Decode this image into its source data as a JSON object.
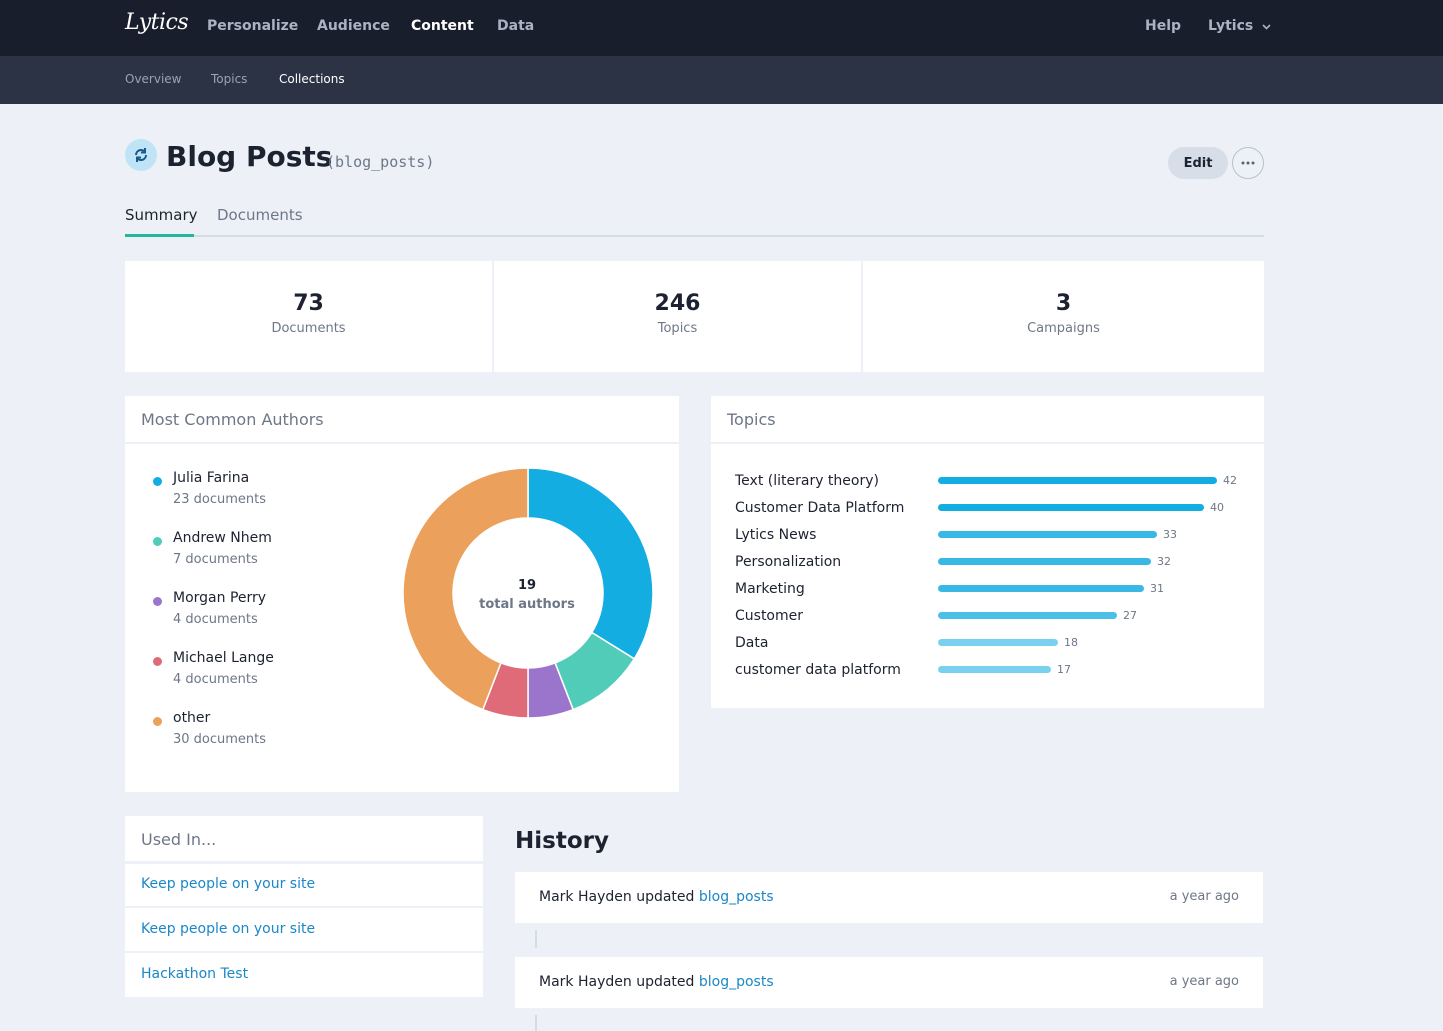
{
  "top_nav": {
    "logo": "Lytics",
    "items": [
      "Personalize",
      "Audience",
      "Content",
      "Data"
    ],
    "help": "Help",
    "account": "Lytics"
  },
  "sub_nav": [
    "Overview",
    "Topics",
    "Collections"
  ],
  "page": {
    "title": "Blog Posts",
    "slug": "(blog_posts)",
    "edit_label": "Edit"
  },
  "tabs": [
    "Summary",
    "Documents"
  ],
  "stats": [
    {
      "value": "73",
      "label": "Documents"
    },
    {
      "value": "246",
      "label": "Topics"
    },
    {
      "value": "3",
      "label": "Campaigns"
    }
  ],
  "authors_card": {
    "title": "Most Common Authors",
    "total": "19",
    "total_label": "total authors",
    "authors": [
      {
        "name": "Julia Farina",
        "count": "23 documents",
        "value": 23,
        "color": "#13ade2"
      },
      {
        "name": "Andrew Nhem",
        "count": "7 documents",
        "value": 7,
        "color": "#51ccb8"
      },
      {
        "name": "Morgan Perry",
        "count": "4 documents",
        "value": 4,
        "color": "#9b74cc"
      },
      {
        "name": "Michael Lange",
        "count": "4 documents",
        "value": 4,
        "color": "#e06b78"
      },
      {
        "name": "other",
        "count": "30 documents",
        "value": 30,
        "color": "#eba05c"
      }
    ]
  },
  "topics_card": {
    "title": "Topics",
    "max": 42,
    "items": [
      {
        "label": "Text (literary theory)",
        "value": 42,
        "value_text": "42",
        "color": "#13ade2"
      },
      {
        "label": "Customer Data Platform",
        "value": 40,
        "value_text": "40",
        "color": "#13ade2"
      },
      {
        "label": "Lytics News",
        "value": 33,
        "value_text": "33",
        "color": "#3ab8e5"
      },
      {
        "label": "Personalization",
        "value": 32,
        "value_text": "32",
        "color": "#3ab8e5"
      },
      {
        "label": "Marketing",
        "value": 31,
        "value_text": "31",
        "color": "#3ab8e5"
      },
      {
        "label": "Customer",
        "value": 27,
        "value_text": "27",
        "color": "#4bbfe8"
      },
      {
        "label": "Data",
        "value": 18,
        "value_text": "18",
        "color": "#7ad1ef"
      },
      {
        "label": "customer data platform",
        "value": 17,
        "value_text": "17",
        "color": "#7ad1ef"
      }
    ]
  },
  "used_in": {
    "title": "Used In...",
    "items": [
      "Keep people on your site",
      "Keep people on your site",
      "Hackathon Test"
    ]
  },
  "history": {
    "title": "History",
    "items": [
      {
        "actor": "Mark Hayden",
        "verb": "updated",
        "target": "blog_posts",
        "time": "a year ago"
      },
      {
        "actor": "Mark Hayden",
        "verb": "updated",
        "target": "blog_posts",
        "time": "a year ago"
      }
    ]
  }
}
